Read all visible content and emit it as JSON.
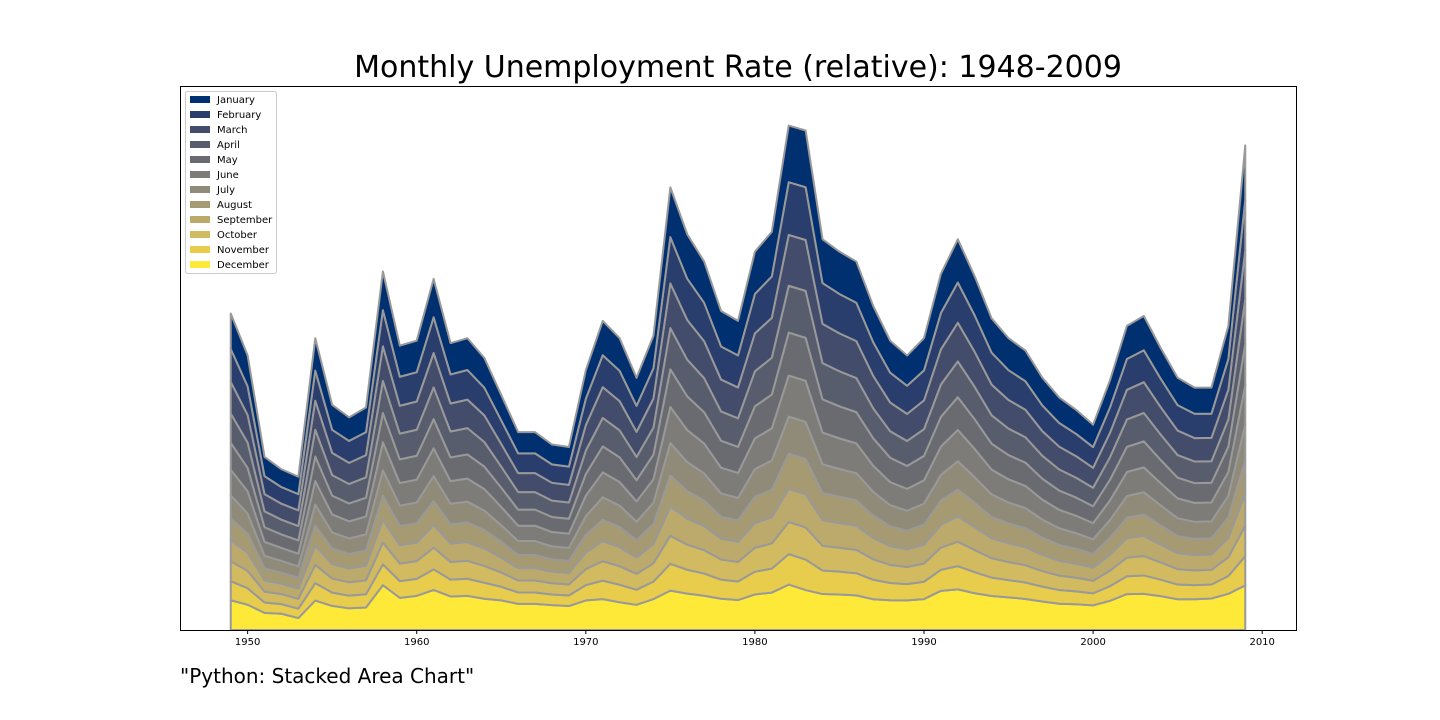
{
  "title": "Monthly Unemployment Rate (relative): 1948-2009",
  "caption": "\"Python: Stacked Area Chart\"",
  "chart_data": {
    "type": "area",
    "stacked": true,
    "title": "Monthly Unemployment Rate (relative): 1948-2009",
    "xlabel": "",
    "ylabel": "",
    "xlim": [
      1946,
      2012
    ],
    "y_axis_visible": false,
    "grid": false,
    "legend_position": "top-left",
    "xticks": [
      1950,
      1960,
      1970,
      1980,
      1990,
      2000,
      2010
    ],
    "x": [
      1949,
      1950,
      1951,
      1952,
      1953,
      1954,
      1955,
      1956,
      1957,
      1958,
      1959,
      1960,
      1961,
      1962,
      1963,
      1964,
      1965,
      1966,
      1967,
      1968,
      1969,
      1970,
      1971,
      1972,
      1973,
      1974,
      1975,
      1976,
      1977,
      1978,
      1979,
      1980,
      1981,
      1982,
      1983,
      1984,
      1985,
      1986,
      1987,
      1988,
      1989,
      1990,
      1991,
      1992,
      1993,
      1994,
      1995,
      1996,
      1997,
      1998,
      1999,
      2000,
      2001,
      2002,
      2003,
      2004,
      2005,
      2006,
      2007,
      2008,
      2009
    ],
    "total": [
      64.0,
      55.5,
      35.0,
      32.5,
      31.0,
      59.0,
      45.5,
      43.0,
      45.0,
      72.5,
      57.5,
      58.5,
      71.0,
      58.0,
      59.0,
      55.0,
      47.5,
      40.0,
      40.0,
      37.5,
      37.0,
      52.5,
      62.5,
      59.0,
      51.0,
      59.5,
      89.5,
      80.0,
      74.5,
      64.5,
      62.5,
      76.5,
      80.5,
      102.0,
      101.0,
      79.0,
      76.5,
      74.5,
      65.5,
      58.5,
      55.5,
      59.0,
      72.0,
      79.0,
      71.5,
      63.0,
      59.0,
      56.5,
      51.0,
      47.0,
      44.5,
      41.5,
      50.5,
      61.5,
      63.5,
      57.0,
      51.0,
      49.0,
      49.0,
      61.5,
      98.0
    ],
    "series": [
      {
        "name": "January",
        "color": "#00306f"
      },
      {
        "name": "February",
        "color": "#2a3e6e"
      },
      {
        "name": "March",
        "color": "#434c6b"
      },
      {
        "name": "April",
        "color": "#575d6d"
      },
      {
        "name": "May",
        "color": "#6a6b70"
      },
      {
        "name": "June",
        "color": "#7d7c78"
      },
      {
        "name": "July",
        "color": "#908a78"
      },
      {
        "name": "August",
        "color": "#a69a73"
      },
      {
        "name": "September",
        "color": "#bcaa6d"
      },
      {
        "name": "October",
        "color": "#d2ba61"
      },
      {
        "name": "November",
        "color": "#e8cc4c"
      },
      {
        "name": "December",
        "color": "#fee838"
      }
    ],
    "weights": [
      1.45,
      1.35,
      1.3,
      1.2,
      1.1,
      1.05,
      0.95,
      0.9,
      0.85,
      0.82,
      0.78,
      0.75
    ],
    "bottom_share": [
      0.094,
      0.092,
      0.099,
      0.101,
      0.078,
      0.101,
      0.107,
      0.102,
      0.101,
      0.125,
      0.113,
      0.118,
      0.114,
      0.117,
      0.117,
      0.115,
      0.126,
      0.132,
      0.132,
      0.134,
      0.131,
      0.114,
      0.1,
      0.095,
      0.1,
      0.105,
      0.089,
      0.092,
      0.093,
      0.098,
      0.097,
      0.094,
      0.094,
      0.09,
      0.08,
      0.092,
      0.094,
      0.094,
      0.095,
      0.103,
      0.108,
      0.106,
      0.11,
      0.104,
      0.104,
      0.109,
      0.112,
      0.111,
      0.113,
      0.113,
      0.117,
      0.12,
      0.117,
      0.118,
      0.115,
      0.12,
      0.122,
      0.127,
      0.13,
      0.119,
      0.092
    ]
  }
}
